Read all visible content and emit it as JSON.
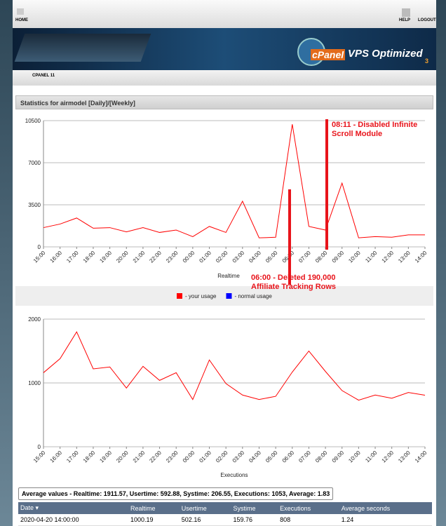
{
  "header": {
    "home": "HOME",
    "help": "HELP",
    "logout": "LOGOUT",
    "brand": "cPanel",
    "brand_suffix": "VPS Optimized",
    "brand_version": "3",
    "tab": "CPANEL 11"
  },
  "panel": {
    "title": "Statistics for airmodel [Daily]/[Weekly]"
  },
  "chart_data": [
    {
      "type": "line",
      "x_label": "Realtime",
      "categories": [
        "15:00",
        "16:00",
        "17:00",
        "18:00",
        "19:00",
        "20:00",
        "21:00",
        "22:00",
        "23:00",
        "00:00",
        "01:00",
        "02:00",
        "03:00",
        "04:00",
        "05:00",
        "06:00",
        "07:00",
        "08:00",
        "09:00",
        "10:00",
        "11:00",
        "12:00",
        "13:00",
        "14:00"
      ],
      "series": [
        {
          "name": "- your usage",
          "color": "#ff0000",
          "values": [
            1600,
            1900,
            2400,
            1550,
            1600,
            1250,
            1600,
            1200,
            1400,
            850,
            1700,
            1200,
            3800,
            750,
            800,
            10200,
            1700,
            1400,
            5300,
            750,
            850,
            800,
            1000,
            1000
          ]
        }
      ],
      "legend_extra": [
        {
          "name": "- normal usage",
          "color": "#0000ff"
        }
      ],
      "ylim": [
        0,
        10500
      ],
      "yticks": [
        0,
        3500,
        7000,
        10500
      ],
      "grid": true,
      "annotations": [
        "08:11 - Disabled Infinite Scroll Module",
        "06:00 - Deleted 190,000 Affiliate Tracking Rows"
      ]
    },
    {
      "type": "line",
      "x_label": "Executions",
      "categories": [
        "15:00",
        "16:00",
        "17:00",
        "18:00",
        "19:00",
        "20:00",
        "21:00",
        "22:00",
        "23:00",
        "00:00",
        "01:00",
        "02:00",
        "03:00",
        "04:00",
        "05:00",
        "06:00",
        "07:00",
        "08:00",
        "09:00",
        "10:00",
        "11:00",
        "12:00",
        "13:00",
        "14:00"
      ],
      "series": [
        {
          "name": "executions",
          "color": "#ff0000",
          "values": [
            1160,
            1380,
            1800,
            1220,
            1250,
            920,
            1260,
            1040,
            1160,
            740,
            1360,
            990,
            810,
            740,
            790,
            1170,
            1500,
            1180,
            880,
            730,
            810,
            760,
            850,
            808
          ]
        }
      ],
      "ylim": [
        0,
        2000
      ],
      "yticks": [
        0,
        1000,
        2000
      ],
      "grid": true
    }
  ],
  "averages": "Average values - Realtime: 1911.57, Usertime: 592.88, Systime: 206.55, Executions: 1053, Average: 1.83",
  "table": {
    "columns": [
      "Date ▾",
      "Realtime",
      "Usertime",
      "Systime",
      "Executions",
      "Average seconds"
    ],
    "rows": [
      [
        "2020-04-20 14:00:00",
        "1000.19",
        "502.16",
        "159.76",
        "808",
        "1.24"
      ]
    ]
  }
}
